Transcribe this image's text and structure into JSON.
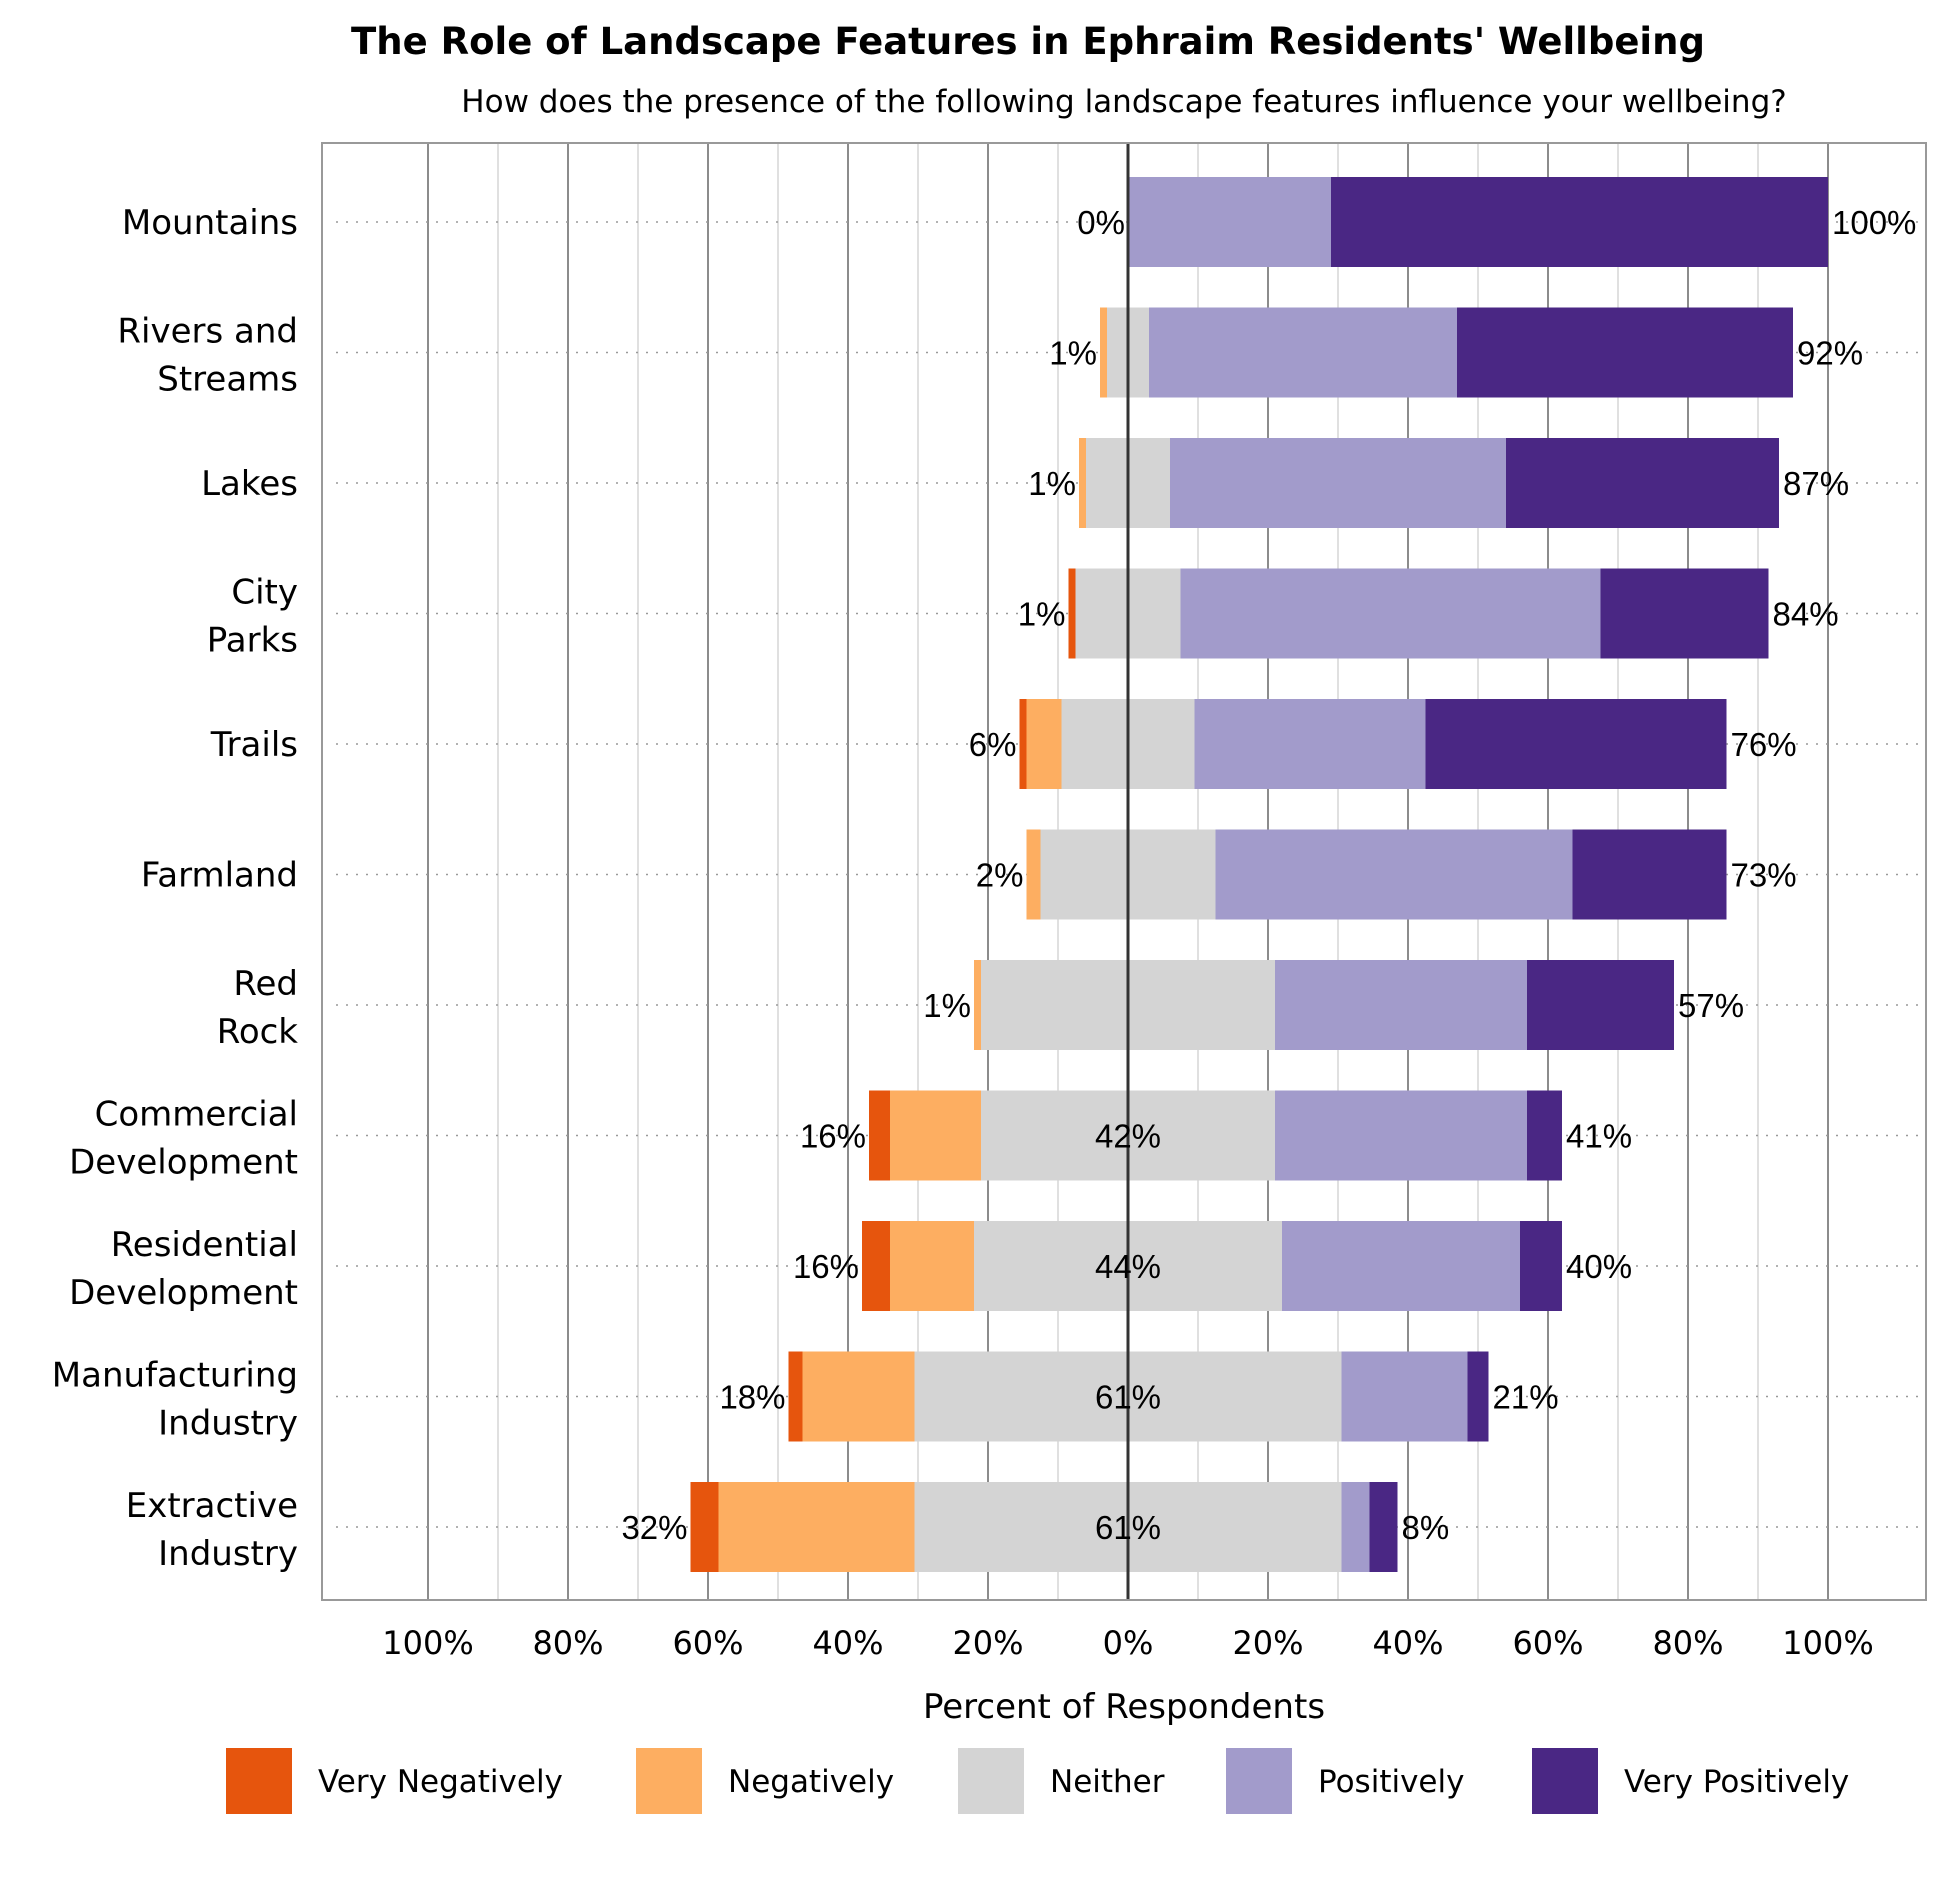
{
  "chart_data": {
    "type": "bar",
    "orientation": "horizontal-diverging-stacked",
    "title": "The Role of Landscape Features in Ephraim Residents' Wellbeing",
    "subtitle": "How does the presence of the following landscape features influence your wellbeing?",
    "xlabel": "Percent of Respondents",
    "xlim": [
      -100,
      100
    ],
    "x_ticks": [
      -100,
      -80,
      -60,
      -40,
      -20,
      0,
      20,
      40,
      60,
      80,
      100
    ],
    "x_tick_labels": [
      "100%",
      "80%",
      "60%",
      "40%",
      "20%",
      "0%",
      "20%",
      "40%",
      "60%",
      "80%",
      "100%"
    ],
    "categories": [
      "Mountains",
      "Rivers and Streams",
      "Lakes",
      "City Parks",
      "Trails",
      "Farmland",
      "Red Rock",
      "Commercial Development",
      "Residential Development",
      "Manufacturing Industry",
      "Extractive Industry"
    ],
    "series": [
      {
        "name": "Very Negatively",
        "color": "#e6550d",
        "values": [
          0,
          0,
          0,
          1,
          1,
          0,
          0,
          3,
          4,
          2,
          4
        ]
      },
      {
        "name": "Negatively",
        "color": "#fdae61",
        "values": [
          0,
          1,
          1,
          0,
          5,
          2,
          1,
          13,
          12,
          16,
          28
        ]
      },
      {
        "name": "Neither",
        "color": "#d4d4d4",
        "values": [
          0,
          6,
          12,
          15,
          19,
          25,
          42,
          42,
          44,
          61,
          61
        ]
      },
      {
        "name": "Positively",
        "color": "#a29bcb",
        "values": [
          29,
          44,
          48,
          60,
          33,
          51,
          36,
          36,
          34,
          18,
          4
        ]
      },
      {
        "name": "Very Positively",
        "color": "#4a2784",
        "values": [
          71,
          48,
          39,
          24,
          43,
          22,
          21,
          5,
          6,
          3,
          4
        ]
      }
    ],
    "negative_totals": [
      "0%",
      "1%",
      "1%",
      "1%",
      "6%",
      "2%",
      "1%",
      "16%",
      "16%",
      "18%",
      "32%"
    ],
    "positive_totals": [
      "100%",
      "92%",
      "87%",
      "84%",
      "76%",
      "73%",
      "57%",
      "41%",
      "40%",
      "21%",
      "8%"
    ],
    "neither_labels": [
      "",
      "",
      "",
      "",
      "",
      "",
      "",
      "42%",
      "44%",
      "61%",
      "61%"
    ],
    "grid": true,
    "legend_position": "bottom"
  }
}
